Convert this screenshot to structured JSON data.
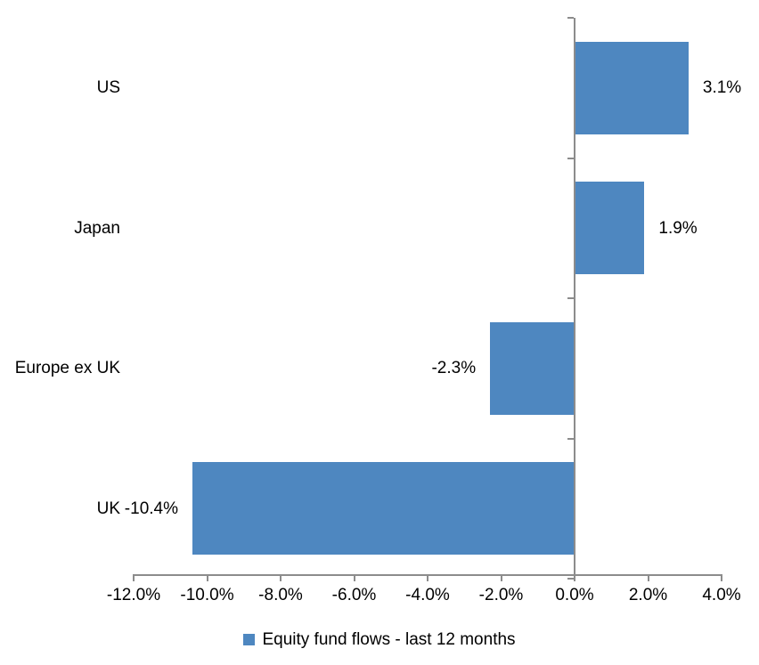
{
  "chart_data": {
    "type": "bar",
    "orientation": "horizontal",
    "title": "",
    "xlabel": "",
    "ylabel": "",
    "categories": [
      "US",
      "Japan",
      "Europe ex UK",
      "UK"
    ],
    "series": [
      {
        "name": "Equity fund flows - last 12 months",
        "values": [
          3.1,
          1.9,
          -2.3,
          -10.4
        ],
        "data_labels": [
          "3.1%",
          "1.9%",
          "-2.3%",
          "-10.4%"
        ]
      }
    ],
    "xlim": [
      -12,
      4
    ],
    "x_tick_labels": [
      "-12.0%",
      "-10.0%",
      "-8.0%",
      "-6.0%",
      "-4.0%",
      "-2.0%",
      "0.0%",
      "2.0%",
      "4.0%"
    ],
    "grid": false,
    "legend_position": "bottom",
    "colors": {
      "bar": "#4E87C0",
      "axis": "#8C8C8C",
      "text": "#000000",
      "background": "#FFFFFF"
    }
  },
  "legend": {
    "swatch_color": "#4E87C0",
    "label": "Equity fund flows - last 12 months"
  }
}
